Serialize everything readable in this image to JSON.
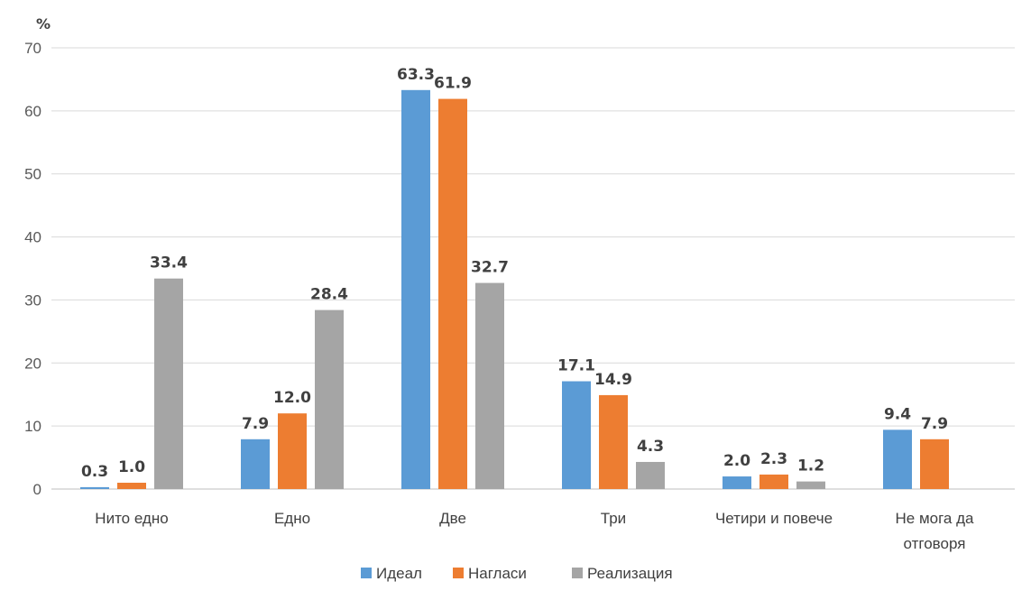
{
  "chart_data": {
    "type": "bar",
    "unit_label": "%",
    "categories": [
      "Нито едно",
      "Едно",
      "Две",
      "Три",
      "Четири и повече",
      "Не мога да отговоря"
    ],
    "series": [
      {
        "name": "Идеал",
        "color": "#5b9bd5",
        "values": [
          0.3,
          7.9,
          63.3,
          17.1,
          2.0,
          9.4
        ]
      },
      {
        "name": "Нагласи",
        "color": "#ed7d31",
        "values": [
          1.0,
          12.0,
          61.9,
          14.9,
          2.3,
          7.9
        ]
      },
      {
        "name": "Реализация",
        "color": "#a5a5a5",
        "values": [
          33.4,
          28.4,
          32.7,
          4.3,
          1.2,
          null
        ]
      }
    ],
    "data_labels": [
      [
        "0.3",
        "7.9",
        "63.3",
        "17.1",
        "2.0",
        "9.4"
      ],
      [
        "1.0",
        "12.0",
        "61.9",
        "14.9",
        "2.3",
        "7.9"
      ],
      [
        "33.4",
        "28.4",
        "32.7",
        "4.3",
        "1.2",
        ""
      ]
    ],
    "ylim": [
      0,
      70
    ],
    "yticks": [
      0,
      10,
      20,
      30,
      40,
      50,
      60,
      70
    ],
    "grid": true,
    "legend_position": "bottom"
  }
}
